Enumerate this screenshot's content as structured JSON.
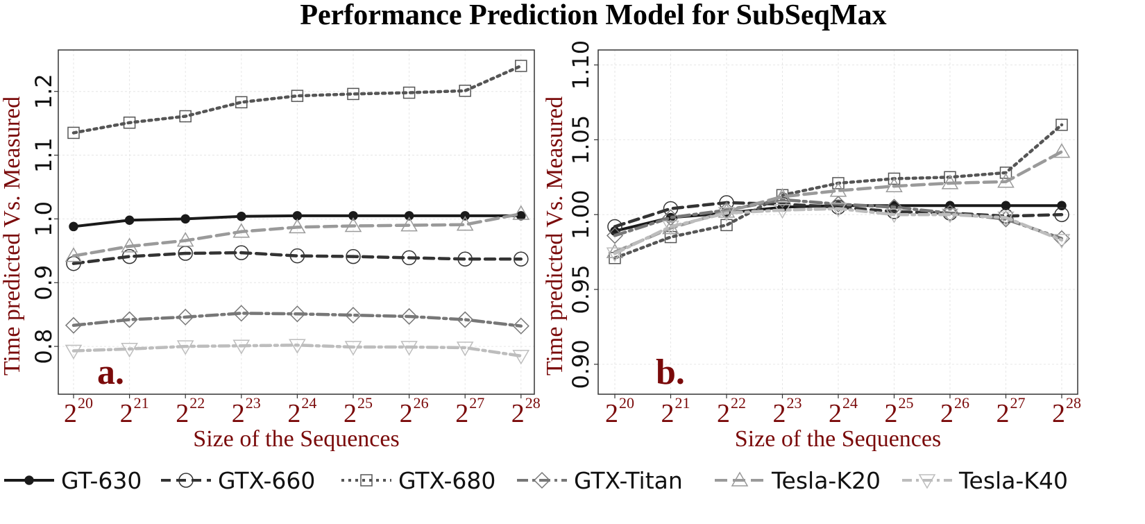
{
  "title": "Performance Prediction  Model for SubSeqMax",
  "colors": {
    "axis_text": "#7a0a0a",
    "GT-630": "#1a1a1a",
    "GTX-660": "#333333",
    "GTX-680": "#555555",
    "GTX-Titan": "#777777",
    "Tesla-K20": "#9a9a9a",
    "Tesla-K40": "#bdbdbd"
  },
  "legend": [
    {
      "name": "GT-630",
      "dash": "",
      "marker": "filled-circle",
      "color": "#1a1a1a"
    },
    {
      "name": "GTX-660",
      "dash": "14 8",
      "marker": "circle",
      "color": "#333333"
    },
    {
      "name": "GTX-680",
      "dash": "4 6",
      "marker": "square",
      "color": "#555555"
    },
    {
      "name": "GTX-Titan",
      "dash": "16 6 4 6",
      "marker": "diamond",
      "color": "#777777"
    },
    {
      "name": "Tesla-K20",
      "dash": "18 8",
      "marker": "triangle-up",
      "color": "#9a9a9a"
    },
    {
      "name": "Tesla-K40",
      "dash": "14 6 4 6",
      "marker": "triangle-down",
      "color": "#bdbdbd"
    }
  ],
  "chart_data": [
    {
      "type": "line",
      "panel_tag": "a.",
      "xlabel": "Size of the Sequences",
      "ylabel": "Time predicted Vs. Measured",
      "x_ticks": [
        {
          "base": "2",
          "exp": "20"
        },
        {
          "base": "2",
          "exp": "21"
        },
        {
          "base": "2",
          "exp": "22"
        },
        {
          "base": "2",
          "exp": "23"
        },
        {
          "base": "2",
          "exp": "24"
        },
        {
          "base": "2",
          "exp": "25"
        },
        {
          "base": "2",
          "exp": "26"
        },
        {
          "base": "2",
          "exp": "27"
        },
        {
          "base": "2",
          "exp": "28"
        }
      ],
      "y_ticks": [
        "0.8",
        "0.9",
        "1.0",
        "1.1",
        "1.2"
      ],
      "ylim": [
        0.725,
        1.265
      ],
      "grid": true,
      "series": [
        {
          "name": "GT-630",
          "values": [
            0.988,
            0.998,
            1.0,
            1.004,
            1.005,
            1.005,
            1.005,
            1.005,
            1.005
          ]
        },
        {
          "name": "GTX-660",
          "values": [
            0.93,
            0.941,
            0.946,
            0.947,
            0.942,
            0.941,
            0.939,
            0.937,
            0.937
          ]
        },
        {
          "name": "GTX-680",
          "values": [
            1.135,
            1.151,
            1.161,
            1.183,
            1.193,
            1.196,
            1.198,
            1.201,
            1.24
          ]
        },
        {
          "name": "GTX-Titan",
          "values": [
            0.833,
            0.842,
            0.846,
            0.852,
            0.851,
            0.849,
            0.847,
            0.842,
            0.832
          ]
        },
        {
          "name": "Tesla-K20",
          "values": [
            0.942,
            0.957,
            0.966,
            0.98,
            0.987,
            0.989,
            0.99,
            0.991,
            1.008
          ]
        },
        {
          "name": "Tesla-K40",
          "values": [
            0.793,
            0.796,
            0.8,
            0.801,
            0.802,
            0.799,
            0.799,
            0.798,
            0.785
          ]
        }
      ]
    },
    {
      "type": "line",
      "panel_tag": "b.",
      "xlabel": "Size of the Sequences",
      "ylabel": "Time predicted Vs. Measured",
      "x_ticks": [
        {
          "base": "2",
          "exp": "20"
        },
        {
          "base": "2",
          "exp": "21"
        },
        {
          "base": "2",
          "exp": "22"
        },
        {
          "base": "2",
          "exp": "23"
        },
        {
          "base": "2",
          "exp": "24"
        },
        {
          "base": "2",
          "exp": "25"
        },
        {
          "base": "2",
          "exp": "26"
        },
        {
          "base": "2",
          "exp": "27"
        },
        {
          "base": "2",
          "exp": "28"
        }
      ],
      "y_ticks": [
        "0.90",
        "0.95",
        "1.00",
        "1.05",
        "1.10"
      ],
      "ylim": [
        0.88,
        1.11
      ],
      "grid": true,
      "series": [
        {
          "name": "GT-630",
          "values": [
            0.989,
            0.998,
            1.001,
            1.005,
            1.006,
            1.006,
            1.006,
            1.006,
            1.006
          ]
        },
        {
          "name": "GTX-660",
          "values": [
            0.992,
            1.004,
            1.008,
            1.007,
            1.005,
            1.002,
            1.001,
            0.999,
            1.0
          ]
        },
        {
          "name": "GTX-680",
          "values": [
            0.971,
            0.985,
            0.993,
            1.013,
            1.021,
            1.024,
            1.025,
            1.028,
            1.06
          ]
        },
        {
          "name": "GTX-Titan",
          "values": [
            0.986,
            0.998,
            1.003,
            1.01,
            1.007,
            1.005,
            1.001,
            0.997,
            0.984
          ]
        },
        {
          "name": "Tesla-K20",
          "values": [
            0.975,
            0.991,
            1.002,
            1.012,
            1.016,
            1.019,
            1.021,
            1.022,
            1.042
          ]
        },
        {
          "name": "Tesla-K40",
          "values": [
            0.974,
            0.992,
            1.001,
            1.003,
            1.004,
            1.0,
            1.0,
            0.998,
            0.983
          ]
        }
      ]
    }
  ]
}
